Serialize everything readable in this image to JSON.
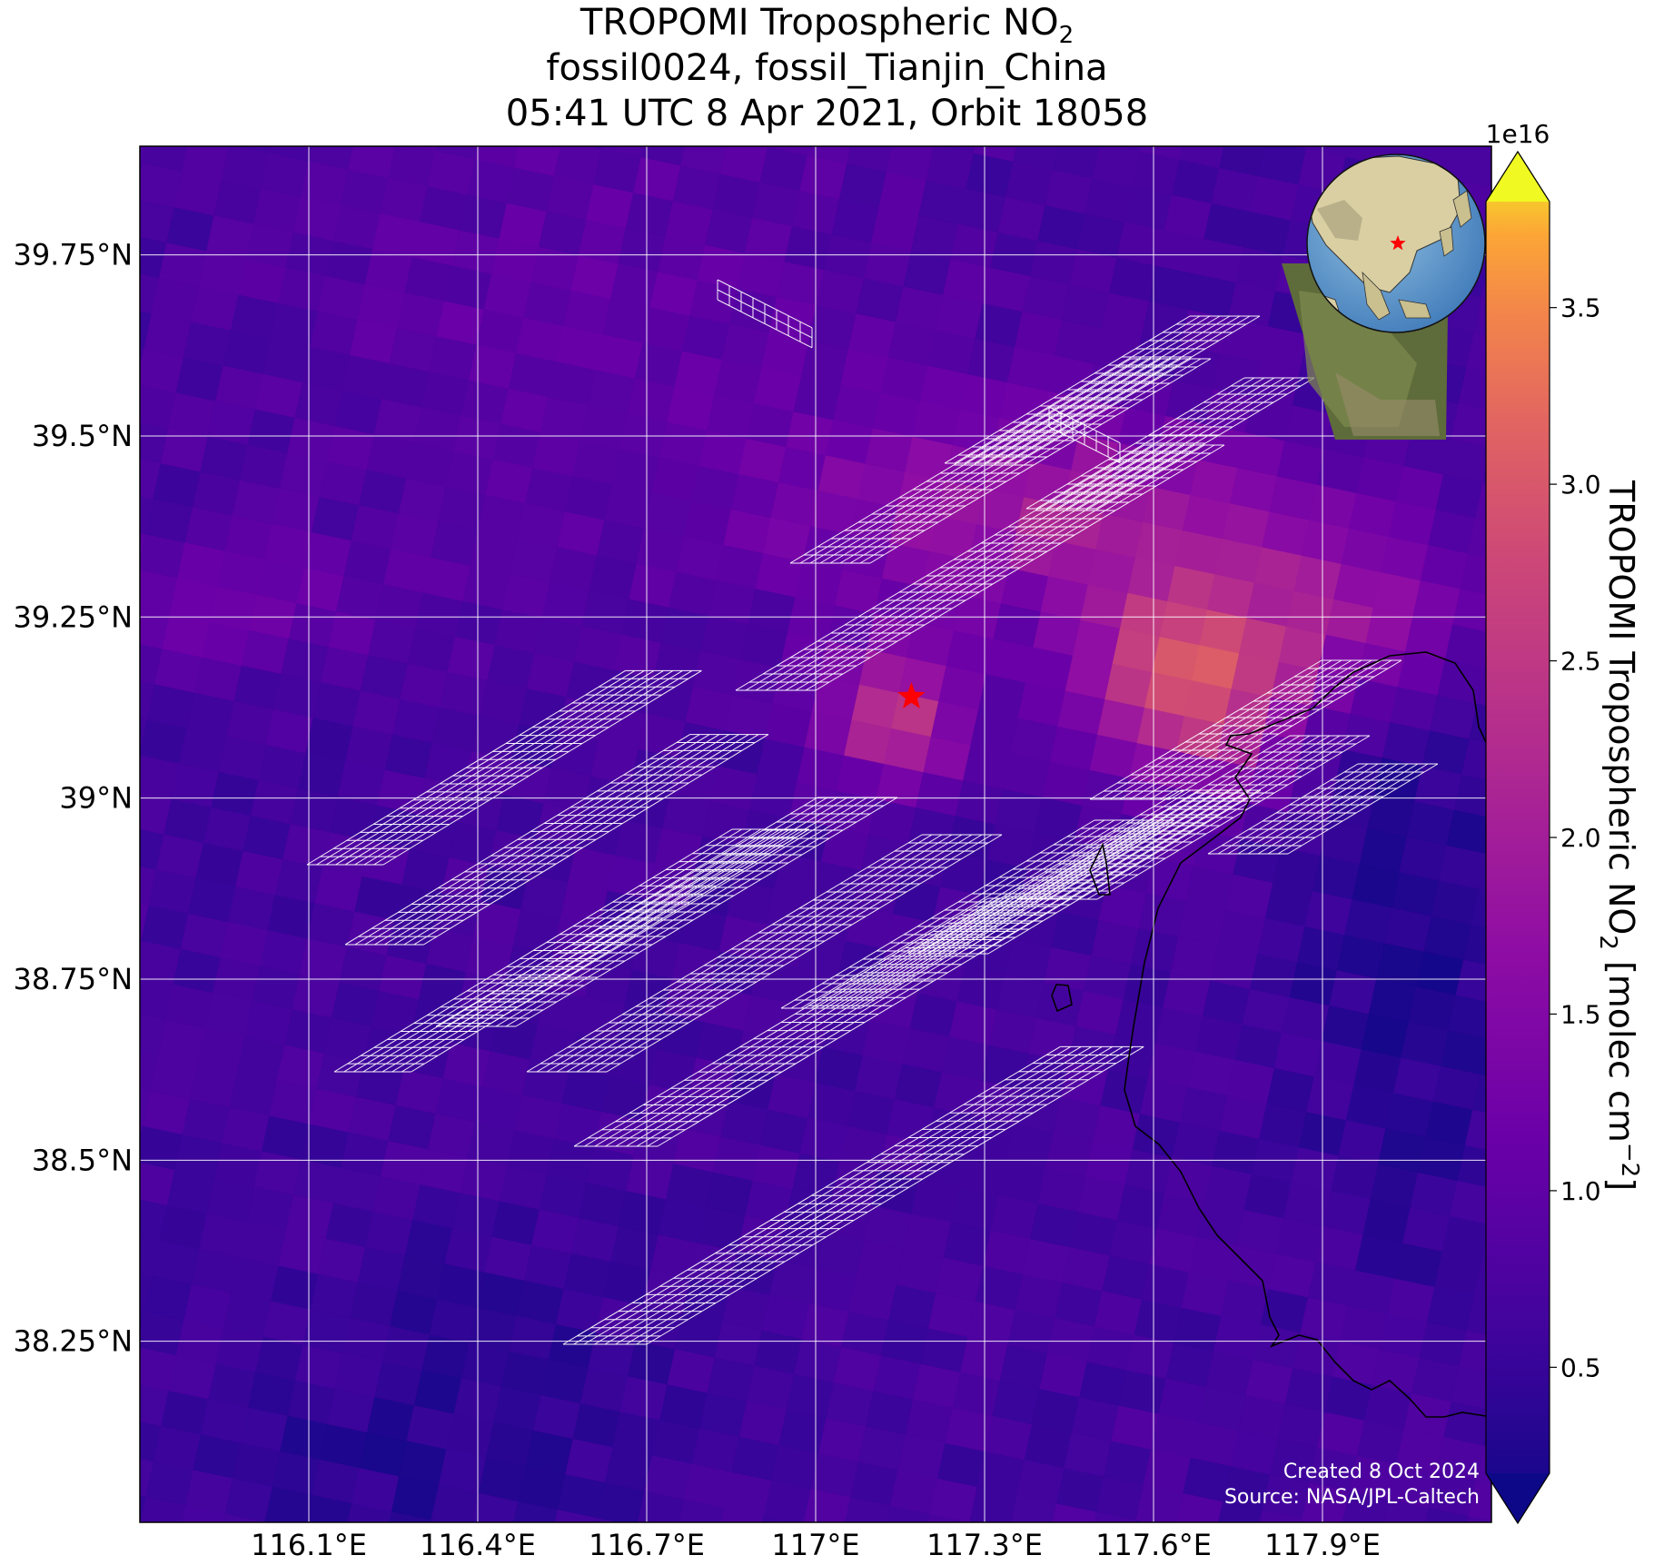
{
  "title": {
    "line1_main": "TROPOMI Tropospheric NO",
    "line1_sub": "2",
    "line2": "fossil0024, fossil_Tianjin_China",
    "line3": "05:41 UTC 8 Apr 2021, Orbit 18058"
  },
  "credits": {
    "created": "Created 8 Oct 2024",
    "source": "Source: NASA/JPL-Caltech"
  },
  "colorbar": {
    "label_main": "TROPOMI Tropospheric NO",
    "label_sub": "2",
    "label_unit": " [molec cm",
    "label_exp": "−2",
    "label_close": "]",
    "exponent": "1e16",
    "ticks": [
      "0.5",
      "1.0",
      "1.5",
      "2.0",
      "2.5",
      "3.0",
      "3.5"
    ],
    "tick_values": [
      0.5,
      1.0,
      1.5,
      2.0,
      2.5,
      3.0,
      3.5
    ],
    "vmin": 0.2,
    "vmax": 3.8,
    "colormap": "plasma",
    "extend": "both"
  },
  "map": {
    "lon_range": [
      115.8,
      118.2
    ],
    "lat_range": [
      38.0,
      39.9
    ],
    "lon_ticks": [
      116.1,
      116.4,
      116.7,
      117.0,
      117.3,
      117.6,
      117.9
    ],
    "lat_ticks": [
      38.25,
      38.5,
      38.75,
      39.0,
      39.25,
      39.5,
      39.75
    ],
    "lon_labels": [
      "116.1°E",
      "116.4°E",
      "116.7°E",
      "117°E",
      "117.3°E",
      "117.6°E",
      "117.9°E"
    ],
    "lat_labels": [
      "38.25°N",
      "38.5°N",
      "38.75°N",
      "39°N",
      "39.25°N",
      "39.5°N",
      "39.75°N"
    ],
    "gridline_color": "#ffffff",
    "target_marker": {
      "lon": 117.17,
      "lat": 39.14,
      "symbol": "star",
      "color": "#ff0000"
    },
    "footprint_color": "#ffffff",
    "coastline_color": "#000000"
  },
  "inset": {
    "type": "globe",
    "marker": "star",
    "marker_color": "#ff0000"
  }
}
